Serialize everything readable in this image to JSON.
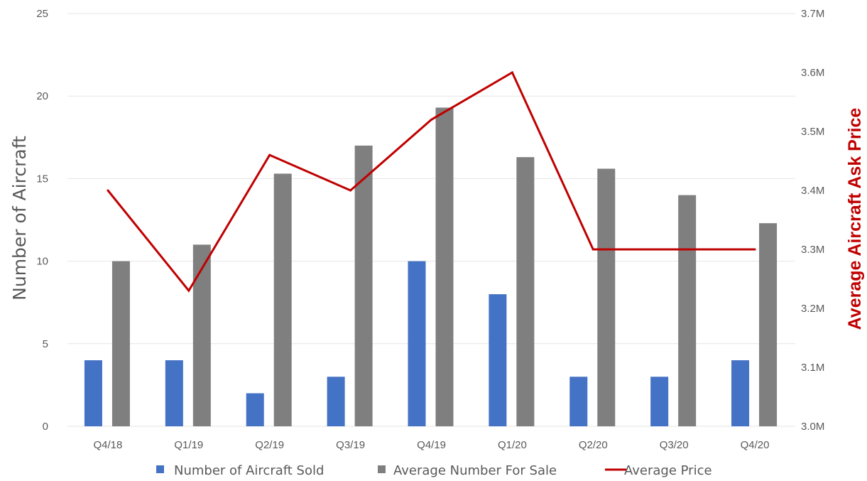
{
  "chart_data": {
    "type": "bar",
    "categories": [
      "Q4/18",
      "Q1/19",
      "Q2/19",
      "Q3/19",
      "Q4/19",
      "Q1/20",
      "Q2/20",
      "Q3/20",
      "Q4/20"
    ],
    "series": [
      {
        "name": "Number of Aircraft Sold",
        "type": "bar",
        "axis": "left",
        "color": "#4472c4",
        "values": [
          4,
          4,
          2,
          3,
          10,
          8,
          3,
          3,
          4
        ]
      },
      {
        "name": "Average Number For Sale",
        "type": "bar",
        "axis": "left",
        "color": "#7f7f7f",
        "values": [
          10,
          11,
          15.3,
          17,
          19.3,
          16.3,
          15.6,
          14,
          12.3
        ]
      },
      {
        "name": "Average Price",
        "type": "line",
        "axis": "right",
        "color": "#c00000",
        "values": [
          3.4,
          3.23,
          3.46,
          3.4,
          3.52,
          3.6,
          3.3,
          3.3,
          3.3
        ]
      }
    ],
    "ylabel": "Number of Aircraft",
    "y2label": "Average Aircraft Ask Price",
    "ylim": [
      0,
      25
    ],
    "y2lim": [
      3.0,
      3.7
    ],
    "yticks": [
      "0",
      "5",
      "10",
      "15",
      "20",
      "25"
    ],
    "y2ticks": [
      "3.0M",
      "3.1M",
      "3.2M",
      "3.3M",
      "3.4M",
      "3.5M",
      "3.6M",
      "3.7M"
    ],
    "grid": true,
    "legend_position": "bottom"
  }
}
